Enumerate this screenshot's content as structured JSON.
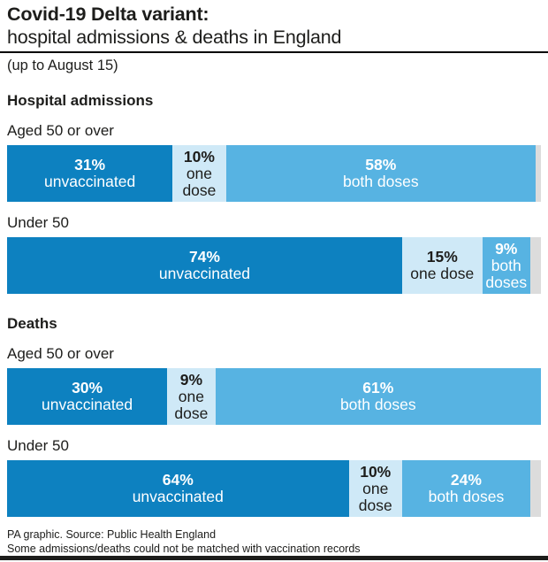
{
  "header": {
    "title_line1": "Covid-19 Delta variant:",
    "title_line2": "hospital admissions & deaths in England",
    "subtitle": "(up to August 15)"
  },
  "footer": {
    "line1": "PA graphic. Source: Public Health England",
    "line2": "Some admissions/deaths could not be matched with vaccination records"
  },
  "chart_data": {
    "type": "bar",
    "variant": "horizontal-stacked",
    "unit": "%",
    "xlim": [
      0,
      100
    ],
    "palette": {
      "unvaccinated": "#0d81c0",
      "one dose": "#cfe9f7",
      "both doses": "#57b3e2",
      "remainder": "#dcdcdc"
    },
    "text_colors": {
      "unvaccinated": "#ffffff",
      "one dose": "#1d1d1b",
      "both doses": "#ffffff"
    },
    "sections": [
      {
        "label": "Hospital admissions",
        "rows": [
          {
            "label": "Aged 50 or over",
            "segments": [
              {
                "name": "unvaccinated",
                "value": 31
              },
              {
                "name": "one dose",
                "value": 10
              },
              {
                "name": "both doses",
                "value": 58
              }
            ]
          },
          {
            "label": "Under 50",
            "segments": [
              {
                "name": "unvaccinated",
                "value": 74
              },
              {
                "name": "one dose",
                "value": 15
              },
              {
                "name": "both doses",
                "value": 9
              }
            ]
          }
        ]
      },
      {
        "label": "Deaths",
        "rows": [
          {
            "label": "Aged 50 or over",
            "segments": [
              {
                "name": "unvaccinated",
                "value": 30
              },
              {
                "name": "one dose",
                "value": 9
              },
              {
                "name": "both doses",
                "value": 61
              }
            ]
          },
          {
            "label": "Under 50",
            "segments": [
              {
                "name": "unvaccinated",
                "value": 64
              },
              {
                "name": "one dose",
                "value": 10
              },
              {
                "name": "both doses",
                "value": 24
              }
            ]
          }
        ]
      }
    ]
  }
}
